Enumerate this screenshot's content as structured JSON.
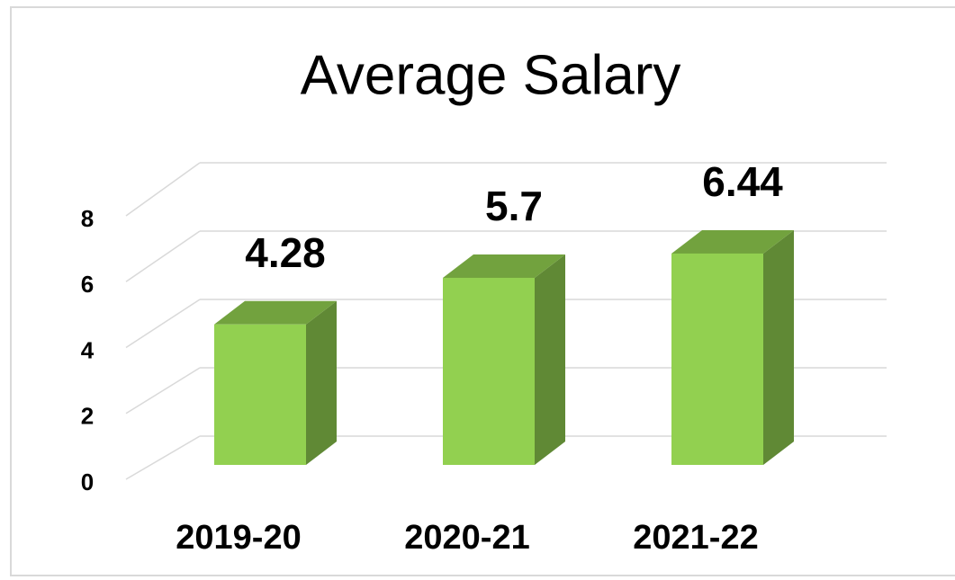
{
  "chart_data": {
    "type": "bar3d",
    "title": "Average Salary",
    "categories": [
      "2019-20",
      "2020-21",
      "2021-22"
    ],
    "values": [
      4.28,
      5.7,
      6.44
    ],
    "color": "#92d050",
    "ylim": [
      0,
      8
    ],
    "yticks": [
      0,
      2,
      4,
      6,
      8
    ],
    "grid": true
  }
}
